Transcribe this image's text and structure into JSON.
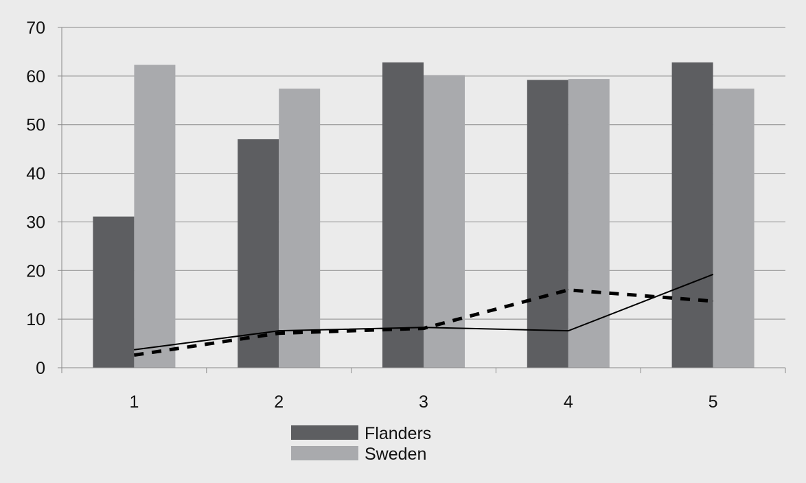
{
  "chart_data": {
    "type": "bar",
    "title": "",
    "xlabel": "",
    "ylabel": "",
    "categories": [
      "1",
      "2",
      "3",
      "4",
      "5"
    ],
    "ylim": [
      0,
      70
    ],
    "yticks": [
      0,
      10,
      20,
      30,
      40,
      50,
      60,
      70
    ],
    "grid": true,
    "legend_position": "bottom-center",
    "series": [
      {
        "name": "Flanders",
        "kind": "bar",
        "color": "#5d5e61",
        "values": [
          31.1,
          47.0,
          62.8,
          59.2,
          62.8
        ]
      },
      {
        "name": "Sweden",
        "kind": "bar",
        "color": "#a9aaad",
        "values": [
          62.3,
          57.4,
          60.2,
          59.4,
          57.4
        ]
      },
      {
        "kind": "line",
        "style": "solid",
        "color": "#000000",
        "values": [
          3.7,
          7.6,
          8.3,
          7.6,
          19.2
        ]
      },
      {
        "kind": "line",
        "style": "dashed",
        "color": "#000000",
        "values": [
          2.6,
          7.1,
          8.1,
          16.0,
          13.7
        ]
      }
    ]
  }
}
